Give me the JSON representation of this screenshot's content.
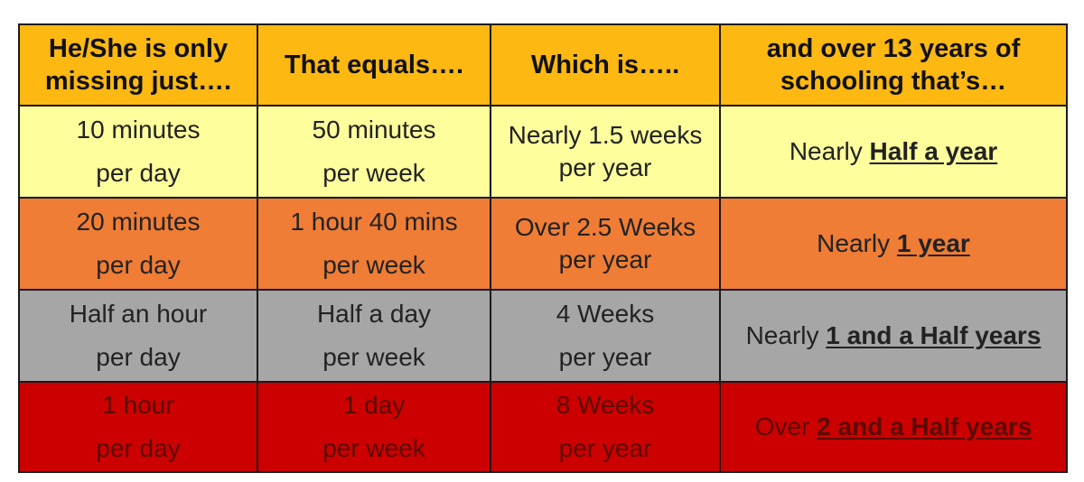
{
  "headers": [
    "He/She is only missing just….",
    "That equals….",
    "Which is…..",
    "and over 13 years of schooling that’s…"
  ],
  "rows": [
    {
      "colors": {
        "background": "#fefe9c"
      },
      "missing": [
        "10 minutes",
        "per day"
      ],
      "equals": [
        "50 minutes",
        "per week"
      ],
      "which_is": [
        "Nearly 1.5 weeks",
        "per year"
      ],
      "result_prefix": "Nearly",
      "result_emph": "Half a year"
    },
    {
      "colors": {
        "background": "#ef7d35"
      },
      "missing": [
        "20 minutes",
        "per day"
      ],
      "equals": [
        "1 hour 40 mins",
        "per week"
      ],
      "which_is": [
        "Over 2.5 Weeks",
        "per year"
      ],
      "result_prefix": "Nearly",
      "result_emph": "1 year"
    },
    {
      "colors": {
        "background": "#a6a6a6"
      },
      "missing": [
        "Half an hour",
        "per day"
      ],
      "equals": [
        "Half a day",
        "per week"
      ],
      "which_is": [
        "4 Weeks",
        "per year"
      ],
      "result_prefix": "Nearly",
      "result_emph": "1 and a Half years"
    },
    {
      "colors": {
        "background": "#cc0000"
      },
      "missing": [
        "1 hour",
        "per day"
      ],
      "equals": [
        "1 day",
        "per week"
      ],
      "which_is": [
        "8 Weeks",
        "per year"
      ],
      "result_prefix": "Over",
      "result_emph": "2 and a Half years"
    }
  ],
  "colors": {
    "header": "#fdb812",
    "border": "#1a1a1a"
  }
}
